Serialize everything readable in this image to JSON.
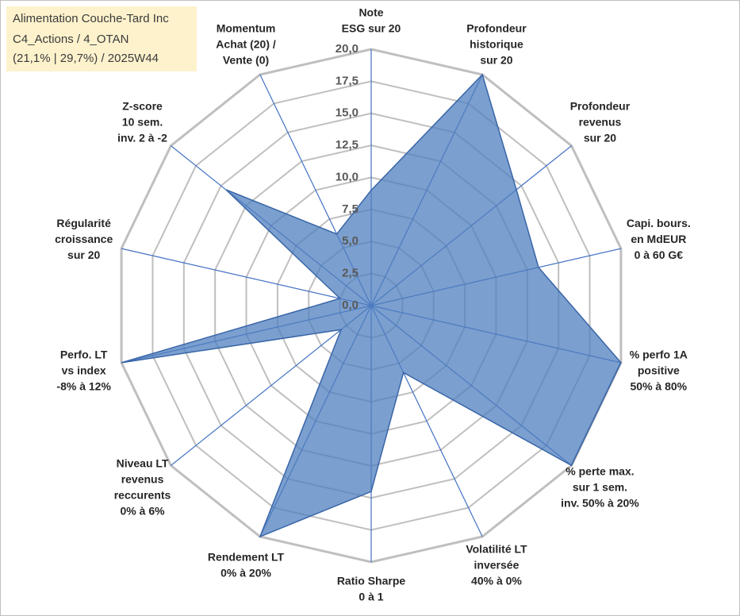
{
  "chart_data": {
    "type": "radar",
    "title": "Alimentation Couche-Tard Inc",
    "subtitle": [
      "C4_Actions / 4_OTAN",
      "(21,1% | 29,7%) / 2025W44"
    ],
    "categories": [
      [
        "Note",
        "ESG sur 20"
      ],
      [
        "Profondeur",
        "historique",
        "sur 20"
      ],
      [
        "Profondeur",
        "revenus",
        "sur 20"
      ],
      [
        "Capi. bours.",
        "en MdEUR",
        "0 à 60 G€"
      ],
      [
        "% perfo 1A",
        "positive",
        "50% à 80%"
      ],
      [
        "% perte max.",
        "sur 1 sem.",
        "inv. 50% à 20%"
      ],
      [
        "Volatilité LT",
        "inversée",
        "40% à 0%"
      ],
      [
        "Ratio Sharpe",
        "0 à 1"
      ],
      [
        "Rendement LT",
        "0% à 20%"
      ],
      [
        "Niveau LT",
        "revenus",
        "reccurents",
        "0% à 6%"
      ],
      [
        "Perfo. LT",
        "vs index",
        "-8% à 12%"
      ],
      [
        "Régularité",
        "croissance",
        "sur 20"
      ],
      [
        "Z-score",
        "10 sem.",
        "inv. 2 à -2"
      ],
      [
        "Momentum",
        "Achat (20) /",
        "Vente (0)"
      ]
    ],
    "values": [
      9,
      20,
      14.5,
      13.4,
      20,
      20,
      5.8,
      14.5,
      20,
      3,
      20,
      2.5,
      14.5,
      6.2
    ],
    "color": "#4f7fbf",
    "ylim": [
      0,
      20
    ],
    "yticks": [
      {
        "value": 0,
        "label": "0,0"
      },
      {
        "value": 2.5,
        "label": "2,5"
      },
      {
        "value": 5,
        "label": "5,0"
      },
      {
        "value": 7.5,
        "label": "7,5"
      },
      {
        "value": 10,
        "label": "10,0"
      },
      {
        "value": 12.5,
        "label": "12,5"
      },
      {
        "value": 15,
        "label": "15,0"
      },
      {
        "value": 17.5,
        "label": "17,5"
      },
      {
        "value": 20,
        "label": "20,0"
      }
    ],
    "grid": true
  }
}
